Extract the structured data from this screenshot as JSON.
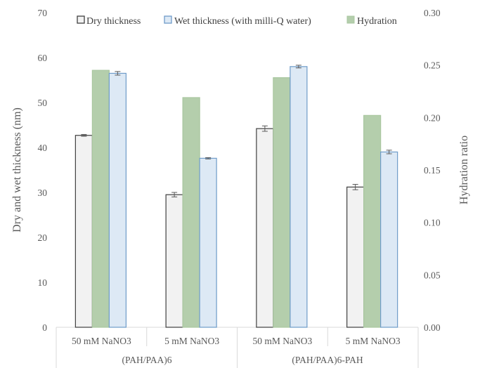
{
  "chart_data": {
    "type": "bar",
    "categories": [
      "50 mM NaNO3",
      "5 mM NaNO3",
      "50 mM NaNO3",
      "5 mM NaNO3"
    ],
    "groups": [
      {
        "label": "(PAH/PAA)6",
        "categories": [
          "50 mM NaNO3",
          "5 mM NaNO3"
        ]
      },
      {
        "label": "(PAH/PAA)6-PAH",
        "categories": [
          "50 mM NaNO3",
          "5 mM NaNO3"
        ]
      }
    ],
    "series": [
      {
        "name": "Dry thickness",
        "axis": "left",
        "values": [
          42.7,
          29.5,
          44.2,
          31.2
        ],
        "errors": [
          0.2,
          0.5,
          0.6,
          0.6
        ],
        "fill": "#f2f2f2",
        "stroke": "#404040"
      },
      {
        "name": "Hydration",
        "axis": "right",
        "values": [
          0.245,
          0.219,
          0.238,
          0.202
        ],
        "fill": "#b4ceac",
        "stroke": "#a9c7a0"
      },
      {
        "name": "Wet thickness (with milli-Q water)",
        "axis": "left",
        "values": [
          56.5,
          37.6,
          58.0,
          39.0
        ],
        "errors": [
          0.4,
          0.15,
          0.3,
          0.4
        ],
        "fill": "#dde9f5",
        "stroke": "#6f9cc9"
      }
    ],
    "legend_order": [
      "Dry thickness",
      "Wet thickness (with milli-Q water)",
      "Hydration"
    ],
    "ylabel": "Dry and wet thickness (nm)",
    "ylabel_right": "Hydration ratio",
    "ylim": [
      0,
      70
    ],
    "ylim_right": [
      0,
      0.3
    ],
    "yticks": [
      "0",
      "10",
      "20",
      "30",
      "40",
      "50",
      "60",
      "70"
    ],
    "yticks_right": [
      "0.00",
      "0.05",
      "0.10",
      "0.15",
      "0.20",
      "0.25",
      "0.30"
    ],
    "legend_placement": "top",
    "grid": false
  }
}
